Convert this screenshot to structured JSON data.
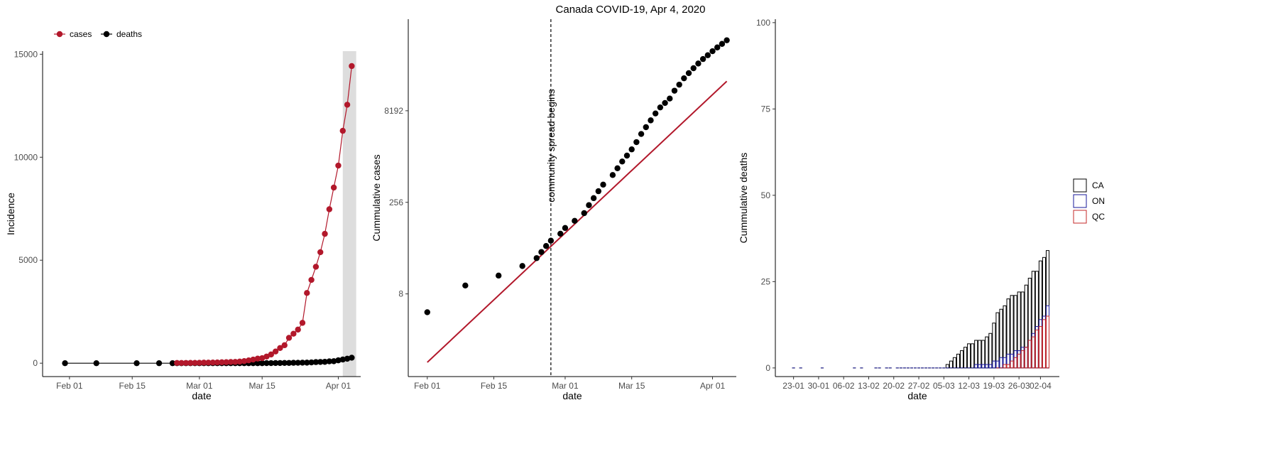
{
  "title": "Canada COVID-19, Apr 4, 2020",
  "colors": {
    "cases": "#b2182b",
    "deaths": "#000000",
    "CA": "#000000",
    "ON": "#1a1a9a",
    "QC": "#c62828",
    "highlight": "#dddddd"
  },
  "chart_data": [
    {
      "type": "line",
      "xlabel": "date",
      "ylabel": "Incidence",
      "xlim": [
        "2020-01-26",
        "2020-04-06"
      ],
      "ylim": [
        -650,
        15150
      ],
      "x_ticks": [
        "2020-02-01",
        "2020-02-15",
        "2020-03-01",
        "2020-03-15",
        "2020-04-01"
      ],
      "x_tick_labels": [
        "Feb 01",
        "Feb 15",
        "Mar 01",
        "Mar 15",
        "Apr 01"
      ],
      "y_ticks": [
        0,
        5000,
        10000,
        15000
      ],
      "y_tick_labels": [
        "0",
        "5000",
        "10000",
        "15000"
      ],
      "legend": {
        "position": "top-left",
        "items": [
          "cases",
          "deaths"
        ]
      },
      "highlight_range": [
        "2020-04-02",
        "2020-04-05"
      ],
      "series": [
        {
          "name": "cases",
          "x": [
            "2020-02-25",
            "2020-02-26",
            "2020-02-27",
            "2020-02-28",
            "2020-02-29",
            "2020-03-01",
            "2020-03-02",
            "2020-03-03",
            "2020-03-04",
            "2020-03-05",
            "2020-03-06",
            "2020-03-07",
            "2020-03-08",
            "2020-03-09",
            "2020-03-10",
            "2020-03-11",
            "2020-03-12",
            "2020-03-13",
            "2020-03-14",
            "2020-03-15",
            "2020-03-16",
            "2020-03-17",
            "2020-03-18",
            "2020-03-19",
            "2020-03-20",
            "2020-03-21",
            "2020-03-22",
            "2020-03-23",
            "2020-03-24",
            "2020-03-25",
            "2020-03-26",
            "2020-03-27",
            "2020-03-28",
            "2020-03-29",
            "2020-03-30",
            "2020-03-31",
            "2020-04-01",
            "2020-04-02",
            "2020-04-03",
            "2020-04-04"
          ],
          "values": [
            11,
            12,
            13,
            14,
            16,
            20,
            27,
            30,
            33,
            37,
            45,
            51,
            60,
            62,
            79,
            103,
            138,
            176,
            223,
            244,
            324,
            424,
            569,
            736,
            873,
            1231,
            1430,
            1631,
            1959,
            3409,
            4043,
            4682,
            5390,
            6280,
            7474,
            8527,
            9595,
            11283,
            12549,
            14426
          ]
        },
        {
          "name": "deaths",
          "x": [
            "2020-01-31",
            "2020-02-07",
            "2020-02-16",
            "2020-02-21",
            "2020-02-24",
            "2020-02-25",
            "2020-02-26",
            "2020-02-27",
            "2020-02-28",
            "2020-02-29",
            "2020-03-01",
            "2020-03-02",
            "2020-03-03",
            "2020-03-04",
            "2020-03-05",
            "2020-03-06",
            "2020-03-07",
            "2020-03-08",
            "2020-03-09",
            "2020-03-10",
            "2020-03-11",
            "2020-03-12",
            "2020-03-13",
            "2020-03-14",
            "2020-03-15",
            "2020-03-16",
            "2020-03-17",
            "2020-03-18",
            "2020-03-19",
            "2020-03-20",
            "2020-03-21",
            "2020-03-22",
            "2020-03-23",
            "2020-03-24",
            "2020-03-25",
            "2020-03-26",
            "2020-03-27",
            "2020-03-28",
            "2020-03-29",
            "2020-03-30",
            "2020-03-31",
            "2020-04-01",
            "2020-04-02",
            "2020-04-03",
            "2020-04-04"
          ],
          "values": [
            0,
            0,
            0,
            0,
            0,
            0,
            0,
            0,
            0,
            0,
            0,
            0,
            0,
            0,
            0,
            0,
            0,
            0,
            1,
            1,
            1,
            1,
            1,
            1,
            1,
            4,
            5,
            8,
            9,
            12,
            13,
            19,
            21,
            25,
            27,
            39,
            54,
            61,
            66,
            89,
            96,
            139,
            179,
            217,
            267
          ]
        }
      ]
    },
    {
      "type": "scatter",
      "scale": "log2",
      "xlabel": "date",
      "ylabel": "Cummulative cases",
      "xlim": [
        "2020-01-28",
        "2020-04-06"
      ],
      "ylim": [
        0.35,
        262144
      ],
      "x_ticks": [
        "2020-02-01",
        "2020-02-15",
        "2020-03-01",
        "2020-03-15",
        "2020-04-01"
      ],
      "x_tick_labels": [
        "Feb 01",
        "Feb 15",
        "Mar 01",
        "Mar 15",
        "Apr 01"
      ],
      "y_ticks": [
        8,
        256,
        8192
      ],
      "y_tick_labels": [
        "8",
        "256",
        "8192"
      ],
      "vline": {
        "x": "2020-02-27",
        "label": "community spread begins"
      },
      "fit_line": {
        "x": [
          "2020-02-01",
          "2020-04-04"
        ],
        "y": [
          0.6,
          25000
        ]
      },
      "points": {
        "x": [
          "2020-02-01",
          "2020-02-09",
          "2020-02-16",
          "2020-02-21",
          "2020-02-24",
          "2020-02-25",
          "2020-02-26",
          "2020-02-27",
          "2020-02-29",
          "2020-03-01",
          "2020-03-03",
          "2020-03-05",
          "2020-03-06",
          "2020-03-07",
          "2020-03-08",
          "2020-03-09",
          "2020-03-11",
          "2020-03-12",
          "2020-03-13",
          "2020-03-14",
          "2020-03-15",
          "2020-03-16",
          "2020-03-17",
          "2020-03-18",
          "2020-03-19",
          "2020-03-20",
          "2020-03-21",
          "2020-03-22",
          "2020-03-23",
          "2020-03-24",
          "2020-03-25",
          "2020-03-26",
          "2020-03-27",
          "2020-03-28",
          "2020-03-29",
          "2020-03-30",
          "2020-03-31",
          "2020-04-01",
          "2020-04-02",
          "2020-04-03",
          "2020-04-04"
        ],
        "values": [
          4,
          11,
          16,
          23,
          31,
          39,
          49,
          60,
          78,
          97,
          127,
          170,
          230,
          300,
          390,
          500,
          720,
          930,
          1200,
          1500,
          1900,
          2500,
          3400,
          4400,
          5700,
          7400,
          9300,
          11000,
          13000,
          17500,
          22000,
          28000,
          34000,
          41000,
          49000,
          58000,
          67000,
          78000,
          90000,
          103000,
          118000
        ]
      }
    },
    {
      "type": "bar",
      "xlabel": "date",
      "ylabel": "Cummulative deaths",
      "xlim": [
        0,
        71
      ],
      "ylim": [
        -2.5,
        101
      ],
      "x_ticks": [
        3,
        10,
        17,
        24,
        31,
        38,
        45,
        52,
        59,
        66,
        72
      ],
      "x_tick_labels": [
        "23-01",
        "30-01",
        "06-02",
        "13-02",
        "20-02",
        "27-02",
        "05-03",
        "12-03",
        "19-03",
        "26-03",
        "02-04"
      ],
      "y_ticks": [
        0,
        25,
        50,
        75,
        100
      ],
      "y_tick_labels": [
        "0",
        "25",
        "50",
        "75",
        "100"
      ],
      "legend": {
        "position": "right",
        "items": [
          "CA",
          "ON",
          "QC"
        ]
      },
      "day_index_origin": "2020-01-20",
      "series": [
        {
          "name": "CA",
          "x": [
            3,
            5,
            11,
            20,
            22,
            26,
            27,
            29,
            30,
            32,
            33,
            34,
            35,
            36,
            37,
            38,
            39,
            40,
            41,
            42,
            43,
            44,
            45,
            46,
            47,
            48,
            49,
            50,
            51,
            52,
            53,
            54,
            55,
            56,
            57,
            58,
            59,
            60,
            61,
            62,
            63,
            64,
            65,
            66,
            67,
            68,
            69,
            70,
            71,
            72,
            73,
            74
          ],
          "values": [
            0,
            0,
            0,
            0,
            0,
            0,
            0,
            0,
            0,
            0,
            0,
            0,
            0,
            0,
            0,
            0,
            0,
            0,
            0,
            0,
            0,
            0,
            0,
            1,
            2,
            3,
            4,
            5,
            6,
            7,
            7,
            8,
            8,
            8,
            9,
            10,
            13,
            16,
            17,
            18,
            20,
            21,
            21,
            22,
            22,
            24,
            26,
            28,
            28,
            31,
            32,
            34
          ]
        },
        {
          "name": "ON",
          "x": [
            3,
            5,
            11,
            20,
            22,
            26,
            27,
            29,
            30,
            32,
            33,
            34,
            35,
            36,
            37,
            38,
            39,
            40,
            41,
            42,
            43,
            44,
            45,
            46,
            47,
            48,
            49,
            50,
            51,
            52,
            53,
            54,
            55,
            56,
            57,
            58,
            59,
            60,
            61,
            62,
            63,
            64,
            65,
            66,
            67,
            68,
            69,
            70,
            71,
            72,
            73,
            74
          ],
          "values": [
            0,
            0,
            0,
            0,
            0,
            0,
            0,
            0,
            0,
            0,
            0,
            0,
            0,
            0,
            0,
            0,
            0,
            0,
            0,
            0,
            0,
            0,
            0,
            0,
            0,
            0,
            0,
            0,
            0,
            0,
            0,
            1,
            1,
            1,
            1,
            1,
            2,
            2,
            3,
            3,
            4,
            4,
            5,
            5,
            6,
            6,
            8,
            10,
            12,
            14,
            15,
            18
          ]
        },
        {
          "name": "QC",
          "x": [
            60,
            61,
            62,
            63,
            64,
            65,
            66,
            67,
            68,
            69,
            70,
            71,
            72,
            73,
            74
          ],
          "values": [
            0,
            0,
            1,
            1,
            2,
            3,
            4,
            5,
            6,
            8,
            9,
            11,
            12,
            14,
            15
          ]
        }
      ]
    }
  ]
}
